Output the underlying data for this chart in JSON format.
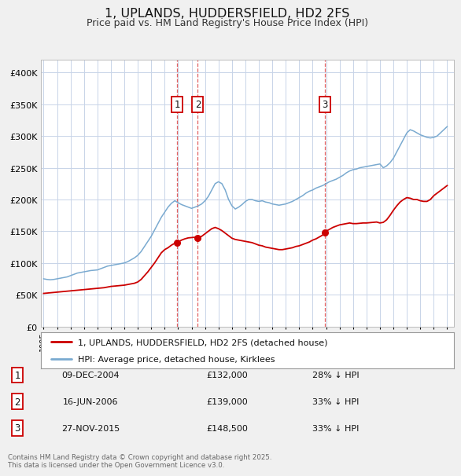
{
  "title": "1, UPLANDS, HUDDERSFIELD, HD2 2FS",
  "subtitle": "Price paid vs. HM Land Registry's House Price Index (HPI)",
  "title_fontsize": 11.5,
  "subtitle_fontsize": 9,
  "bg_color": "#f0f0f0",
  "plot_bg_color": "#ffffff",
  "grid_color": "#c8d4e8",
  "red_line_color": "#cc0000",
  "blue_line_color": "#7aaad0",
  "vline_color": "#dd4444",
  "ylim": [
    0,
    420000
  ],
  "yticks": [
    0,
    50000,
    100000,
    150000,
    200000,
    250000,
    300000,
    350000,
    400000
  ],
  "ytick_labels": [
    "£0",
    "£50K",
    "£100K",
    "£150K",
    "£200K",
    "£250K",
    "£300K",
    "£350K",
    "£400K"
  ],
  "xlim_start": 1994.8,
  "xlim_end": 2025.5,
  "transactions": [
    {
      "num": 1,
      "date_str": "09-DEC-2004",
      "year": 2004.94,
      "price": 132000,
      "hpi_pct": "28% ↓ HPI"
    },
    {
      "num": 2,
      "date_str": "16-JUN-2006",
      "year": 2006.46,
      "price": 139000,
      "hpi_pct": "33% ↓ HPI"
    },
    {
      "num": 3,
      "date_str": "27-NOV-2015",
      "year": 2015.91,
      "price": 148500,
      "hpi_pct": "33% ↓ HPI"
    }
  ],
  "legend_label_red": "1, UPLANDS, HUDDERSFIELD, HD2 2FS (detached house)",
  "legend_label_blue": "HPI: Average price, detached house, Kirklees",
  "footnote": "Contains HM Land Registry data © Crown copyright and database right 2025.\nThis data is licensed under the Open Government Licence v3.0.",
  "hpi_data": {
    "years": [
      1995.0,
      1995.25,
      1995.5,
      1995.75,
      1996.0,
      1996.25,
      1996.5,
      1996.75,
      1997.0,
      1997.25,
      1997.5,
      1997.75,
      1998.0,
      1998.25,
      1998.5,
      1998.75,
      1999.0,
      1999.25,
      1999.5,
      1999.75,
      2000.0,
      2000.25,
      2000.5,
      2000.75,
      2001.0,
      2001.25,
      2001.5,
      2001.75,
      2002.0,
      2002.25,
      2002.5,
      2002.75,
      2003.0,
      2003.25,
      2003.5,
      2003.75,
      2004.0,
      2004.25,
      2004.5,
      2004.75,
      2005.0,
      2005.25,
      2005.5,
      2005.75,
      2006.0,
      2006.25,
      2006.5,
      2006.75,
      2007.0,
      2007.25,
      2007.5,
      2007.75,
      2008.0,
      2008.25,
      2008.5,
      2008.75,
      2009.0,
      2009.25,
      2009.5,
      2009.75,
      2010.0,
      2010.25,
      2010.5,
      2010.75,
      2011.0,
      2011.25,
      2011.5,
      2011.75,
      2012.0,
      2012.25,
      2012.5,
      2012.75,
      2013.0,
      2013.25,
      2013.5,
      2013.75,
      2014.0,
      2014.25,
      2014.5,
      2014.75,
      2015.0,
      2015.25,
      2015.5,
      2015.75,
      2016.0,
      2016.25,
      2016.5,
      2016.75,
      2017.0,
      2017.25,
      2017.5,
      2017.75,
      2018.0,
      2018.25,
      2018.5,
      2018.75,
      2019.0,
      2019.25,
      2019.5,
      2019.75,
      2020.0,
      2020.25,
      2020.5,
      2020.75,
      2021.0,
      2021.25,
      2021.5,
      2021.75,
      2022.0,
      2022.25,
      2022.5,
      2022.75,
      2023.0,
      2023.25,
      2023.5,
      2023.75,
      2024.0,
      2024.25,
      2024.5,
      2024.75,
      2025.0
    ],
    "values": [
      75000,
      74000,
      73500,
      74000,
      75000,
      76000,
      77000,
      78000,
      80000,
      82000,
      84000,
      85000,
      86000,
      87000,
      88000,
      88500,
      89000,
      91000,
      93000,
      95000,
      96000,
      97000,
      98000,
      99000,
      100000,
      102000,
      105000,
      108000,
      112000,
      118000,
      126000,
      134000,
      142000,
      152000,
      162000,
      172000,
      180000,
      188000,
      194000,
      198000,
      195000,
      192000,
      190000,
      188000,
      186000,
      188000,
      190000,
      193000,
      198000,
      205000,
      215000,
      225000,
      228000,
      225000,
      215000,
      200000,
      190000,
      185000,
      188000,
      192000,
      197000,
      200000,
      200000,
      198000,
      197000,
      198000,
      196000,
      195000,
      193000,
      192000,
      191000,
      192000,
      193000,
      195000,
      197000,
      200000,
      203000,
      206000,
      210000,
      213000,
      215000,
      218000,
      220000,
      222000,
      225000,
      228000,
      230000,
      232000,
      235000,
      238000,
      242000,
      245000,
      247000,
      248000,
      250000,
      251000,
      252000,
      253000,
      254000,
      255000,
      256000,
      250000,
      253000,
      258000,
      265000,
      275000,
      285000,
      295000,
      305000,
      310000,
      308000,
      305000,
      302000,
      300000,
      298000,
      297000,
      298000,
      300000,
      305000,
      310000,
      315000
    ]
  },
  "house_data": {
    "years": [
      1995.0,
      1995.25,
      1995.5,
      1995.75,
      1996.0,
      1996.25,
      1996.5,
      1996.75,
      1997.0,
      1997.25,
      1997.5,
      1997.75,
      1998.0,
      1998.25,
      1998.5,
      1998.75,
      1999.0,
      1999.25,
      1999.5,
      1999.75,
      2000.0,
      2000.25,
      2000.5,
      2000.75,
      2001.0,
      2001.25,
      2001.5,
      2001.75,
      2002.0,
      2002.25,
      2002.5,
      2002.75,
      2003.0,
      2003.25,
      2003.5,
      2003.75,
      2004.0,
      2004.25,
      2004.5,
      2004.75,
      2004.94,
      2005.0,
      2005.25,
      2005.5,
      2005.75,
      2006.0,
      2006.25,
      2006.46,
      2006.5,
      2006.75,
      2007.0,
      2007.25,
      2007.5,
      2007.75,
      2008.0,
      2008.25,
      2008.5,
      2008.75,
      2009.0,
      2009.25,
      2009.5,
      2009.75,
      2010.0,
      2010.25,
      2010.5,
      2010.75,
      2011.0,
      2011.25,
      2011.5,
      2011.75,
      2012.0,
      2012.25,
      2012.5,
      2012.75,
      2013.0,
      2013.25,
      2013.5,
      2013.75,
      2014.0,
      2014.25,
      2014.5,
      2014.75,
      2015.0,
      2015.25,
      2015.5,
      2015.75,
      2015.91,
      2016.0,
      2016.25,
      2016.5,
      2016.75,
      2017.0,
      2017.25,
      2017.5,
      2017.75,
      2018.0,
      2018.25,
      2018.5,
      2018.75,
      2019.0,
      2019.25,
      2019.5,
      2019.75,
      2020.0,
      2020.25,
      2020.5,
      2020.75,
      2021.0,
      2021.25,
      2021.5,
      2021.75,
      2022.0,
      2022.25,
      2022.5,
      2022.75,
      2023.0,
      2023.25,
      2023.5,
      2023.75,
      2024.0,
      2024.25,
      2024.5,
      2024.75,
      2025.0
    ],
    "values": [
      52000,
      52500,
      53000,
      53500,
      54000,
      54500,
      55000,
      55500,
      56000,
      56500,
      57000,
      57500,
      58000,
      58500,
      59000,
      59500,
      60000,
      60500,
      61000,
      62000,
      63000,
      63500,
      64000,
      64500,
      65000,
      66000,
      67000,
      68000,
      70000,
      74000,
      80000,
      86000,
      93000,
      100000,
      108000,
      116000,
      121000,
      124000,
      128000,
      131000,
      132000,
      133000,
      136000,
      138000,
      139500,
      140000,
      140500,
      139000,
      139500,
      142000,
      146000,
      150000,
      154000,
      156000,
      154000,
      151000,
      147000,
      143000,
      139000,
      137000,
      136000,
      135000,
      134000,
      133000,
      132000,
      130000,
      128000,
      127000,
      125000,
      124000,
      123000,
      122000,
      121000,
      121000,
      122000,
      123000,
      124000,
      126000,
      127000,
      129000,
      131000,
      133000,
      136000,
      138000,
      141000,
      144000,
      148500,
      150000,
      153000,
      156000,
      158000,
      160000,
      161000,
      162000,
      163000,
      162000,
      162000,
      162500,
      163000,
      163000,
      163500,
      164000,
      164500,
      163000,
      164000,
      168000,
      175000,
      183000,
      190000,
      196000,
      200000,
      203000,
      202000,
      200000,
      200000,
      198000,
      197000,
      197000,
      200000,
      206000,
      210000,
      214000,
      218000,
      222000
    ]
  }
}
